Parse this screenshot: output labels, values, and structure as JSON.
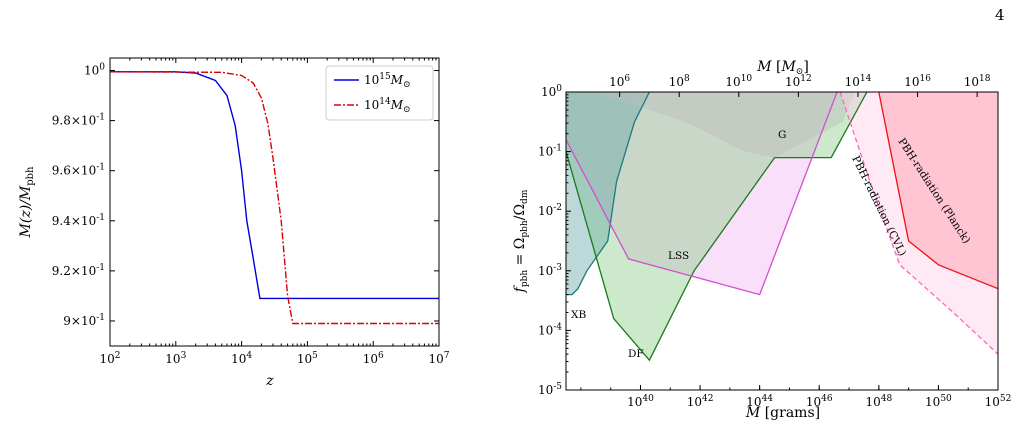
{
  "page": {
    "number": "4"
  },
  "chart_data": [
    {
      "type": "line",
      "title": "",
      "xlabel": "z",
      "ylabel": "M(z)/M_pbh",
      "xscale": "log",
      "xlim": [
        100,
        10000000
      ],
      "ylim": [
        0.89,
        1.005
      ],
      "xtick_labels": [
        "10^2",
        "10^3",
        "10^4",
        "10^5",
        "10^6",
        "10^7"
      ],
      "ytick_labels": [
        "10^0",
        "9.8 × 10^-1",
        "9.6 × 10^-1",
        "9.4 × 10^-1",
        "9.2 × 10^-1",
        "9 × 10^-1"
      ],
      "ytick_values": [
        1.0,
        0.98,
        0.96,
        0.94,
        0.92,
        0.9
      ],
      "legend_position": "top-right",
      "series": [
        {
          "name": "10^15 M_⊙",
          "color": "#0000dd",
          "style": "solid",
          "x": [
            100,
            1000,
            2000,
            4000,
            6000,
            8000,
            10000,
            12000,
            15000,
            19000,
            10000000
          ],
          "y": [
            0.9995,
            0.9995,
            0.999,
            0.996,
            0.99,
            0.978,
            0.96,
            0.94,
            0.925,
            0.909,
            0.909
          ]
        },
        {
          "name": "10^14 M_⊙",
          "color": "#dd0000",
          "style": "dashdot",
          "x": [
            100,
            5000,
            10000,
            15000,
            20000,
            25000,
            30000,
            40000,
            50000,
            60000,
            10000000
          ],
          "y": [
            0.9995,
            0.9993,
            0.998,
            0.995,
            0.989,
            0.979,
            0.965,
            0.94,
            0.91,
            0.899,
            0.899
          ]
        }
      ]
    },
    {
      "type": "area",
      "title": "",
      "xlabel": "M [grams]",
      "ylabel": "f_pbh = Ω_pbh/Ω_dm",
      "x2label": "M [M_⊙]",
      "xscale": "log",
      "yscale": "log",
      "xlim_log10": [
        37.5,
        52
      ],
      "ylim_log10": [
        -5,
        0
      ],
      "xtick_labels": [
        "10^40",
        "10^42",
        "10^44",
        "10^46",
        "10^48",
        "10^50",
        "10^52"
      ],
      "x2tick_labels": [
        "10^6",
        "10^8",
        "10^10",
        "10^12",
        "10^14",
        "10^16",
        "10^18"
      ],
      "ytick_labels": [
        "10^0",
        "10^-1",
        "10^-2",
        "10^-3",
        "10^-4",
        "10^-5"
      ],
      "series": [
        {
          "name": "XB",
          "color": "#1f7a7a",
          "fill": "#6aa8a8",
          "log_x": [
            37.5,
            37.7,
            37.9,
            38.2,
            38.9,
            39.2,
            39.8,
            40.3,
            40.5,
            37.5
          ],
          "log_y": [
            -3.4,
            -3.4,
            -3.3,
            -3.0,
            -2.5,
            -1.5,
            -0.5,
            0,
            0,
            0
          ]
        },
        {
          "name": "DF",
          "color": "#1a7a1a",
          "fill": "#8fcf8f",
          "log_x": [
            37.5,
            39.1,
            40.3,
            41.8,
            44.5,
            46.4,
            47.6,
            37.5
          ],
          "log_y": [
            -1.0,
            -3.8,
            -4.5,
            -3.0,
            -1.1,
            -1.1,
            0,
            0
          ]
        },
        {
          "name": "LSS",
          "color": "#d050d0",
          "fill": "#f2b8f2",
          "log_x": [
            37.5,
            39.6,
            44.0,
            46.6,
            37.5
          ],
          "log_y": [
            -0.8,
            -2.8,
            -3.4,
            0,
            0
          ]
        },
        {
          "name": "G",
          "color": "#999999",
          "fill": "#bdbdbd",
          "log_x": [
            37.5,
            38.5,
            41.5,
            43.5,
            44.5,
            46.8,
            47.2,
            37.5
          ],
          "log_y": [
            0,
            0,
            -0.5,
            -1.0,
            -1.1,
            -0.5,
            0,
            0
          ]
        },
        {
          "name": "PBH-radiation (CVL)",
          "color": "#ff66bb",
          "fill": "#ffcfe8",
          "style": "dashed",
          "log_x": [
            46.7,
            47.7,
            48.7,
            50.5,
            52,
            52
          ],
          "log_y": [
            0,
            -1.5,
            -2.9,
            -3.7,
            -4.4,
            0
          ]
        },
        {
          "name": "PBH-radiation (Planck)",
          "color": "#ee1111",
          "fill": "#ff99aa",
          "log_x": [
            48.0,
            49.0,
            50.0,
            52,
            52
          ],
          "log_y": [
            0,
            -2.5,
            -2.9,
            -3.3,
            0
          ]
        }
      ]
    }
  ]
}
